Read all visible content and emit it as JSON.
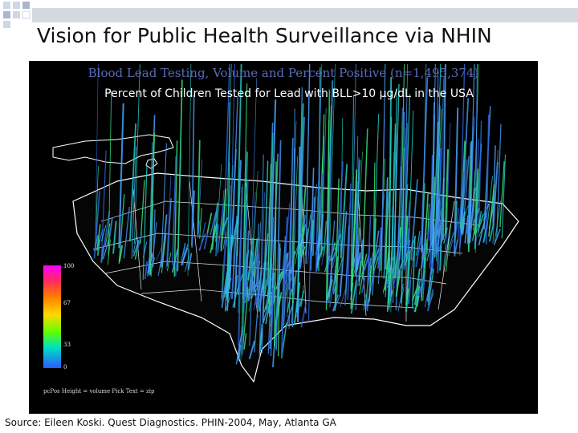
{
  "slide": {
    "title": "Vision for Public Health Surveillance via NHIN",
    "source": "Source: Eileen Koski. Quest Diagnostics. PHIN-2004, May, Atlanta GA",
    "overlay_title": "Percent of Children Tested for Lead with BLL>10 µg/dL in the USA"
  },
  "figure": {
    "title": "Blood Lead Testing, Volume and Percent Positive (n=1,495,374)",
    "legend": {
      "ticks": [
        "100",
        "67",
        "33",
        "0"
      ],
      "caption": "pcPos     Height = volume     Pick Text = zip"
    }
  },
  "colors": {
    "background": "#000000",
    "figure_title": "#5a6ab8",
    "spike_colors": [
      "#2a63d9",
      "#3d8ee8",
      "#1fc9c0",
      "#35e07a",
      "#4aa5ff"
    ]
  }
}
